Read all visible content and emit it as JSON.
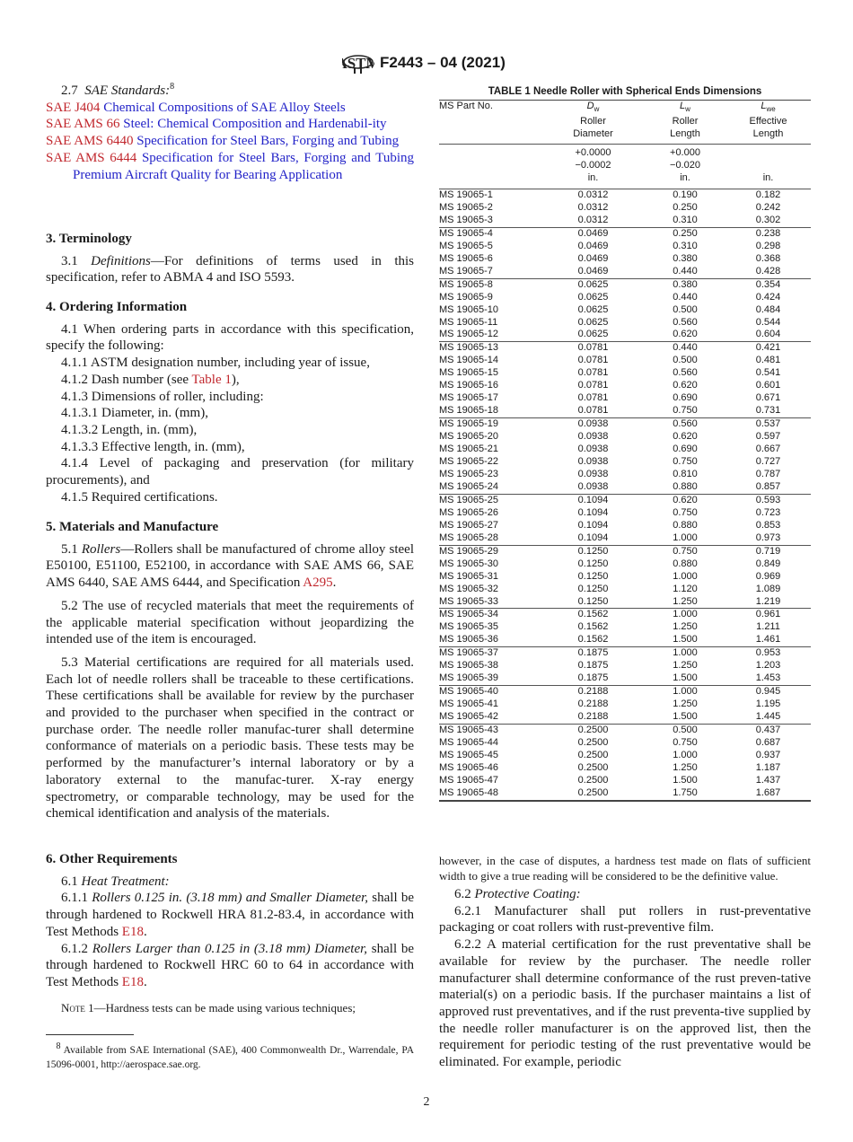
{
  "header": {
    "designation": "F2443 – 04 (2021)"
  },
  "left": {
    "s27": {
      "num": "2.7",
      "title": "SAE Standards:",
      "fn": "8"
    },
    "refs": [
      {
        "code": "SAE J404",
        "title": "Chemical Compositions of SAE Alloy Steels"
      },
      {
        "code": "SAE AMS 66",
        "title": "Steel: Chemical Composition and Hardenabil-ity"
      },
      {
        "code": "SAE AMS 6440",
        "title": "Specification for Steel Bars, Forging and Tubing"
      },
      {
        "code": "SAE AMS 6444",
        "title": "Specification for Steel Bars, Forging and Tubing Premium Aircraft Quality for Bearing Application"
      }
    ],
    "h3": "3. Terminology",
    "p31": {
      "num": "3.1",
      "head": "Definitions",
      "text": "—For definitions of terms used in this specification, refer to ABMA 4 and ISO 5593."
    },
    "h4": "4. Ordering Information",
    "p41": "4.1 When ordering parts in accordance with this specification, specify the following:",
    "p411": "4.1.1 ASTM designation number, including year of issue,",
    "p412": {
      "pre": "4.1.2 Dash number (see ",
      "link": "Table 1",
      "post": "),"
    },
    "p413": "4.1.3 Dimensions of roller, including:",
    "p4131": "4.1.3.1 Diameter, in. (mm),",
    "p4132": "4.1.3.2 Length, in. (mm),",
    "p4133": "4.1.3.3 Effective length, in. (mm),",
    "p414": "4.1.4 Level of packaging and preservation (for military procurements), and",
    "p415": "4.1.5 Required certifications.",
    "h5": "5. Materials and Manufacture",
    "p51": {
      "num": "5.1",
      "head": "Rollers",
      "text": "—Rollers shall be manufactured of chrome alloy steel E50100, E51100, E52100, in accordance with SAE AMS 66, SAE AMS 6440, SAE AMS 6444, and Specification ",
      "link": "A295",
      "post": "."
    },
    "p52": "5.2 The use of recycled materials that meet the requirements of the applicable material specification without jeopardizing the intended use of the item is encouraged.",
    "p53": "5.3 Material certifications are required for all materials used. Each lot of needle rollers shall be traceable to these certifications. These certifications shall be available for review by the purchaser and provided to the purchaser when specified in the contract or purchase order. The needle roller manufac-turer shall determine conformance of materials on a periodic basis. These tests may be performed by the manufacturer’s internal laboratory or by a laboratory external to the manufac-turer. X-ray energy spectrometry, or comparable technology, may be used for the chemical identification and analysis of the materials.",
    "h6": "6. Other Requirements",
    "p61": {
      "num": "6.1",
      "head": "Heat Treatment:"
    },
    "p611": {
      "num": "6.1.1",
      "head": "Rollers 0.125 in. (3.18 mm) and Smaller Diameter,",
      "text": " shall be through hardened to Rockwell HRA 81.2-83.4, in accordance with Test Methods ",
      "link": "E18",
      "post": "."
    },
    "p612": {
      "num": "6.1.2",
      "head": "Rollers Larger than 0.125 in (3.18 mm) Diameter,",
      "text": " shall be through hardened to Rockwell HRC 60 to 64 in accordance with Test Methods ",
      "link": "E18",
      "post": "."
    },
    "note1": {
      "label": "Note",
      "text": " 1—Hardness tests can be made using various techniques;"
    },
    "footnote": {
      "mark": "8",
      "text": " Available from SAE International (SAE), 400 Commonwealth Dr., Warrendale, PA 15096-0001, http://aerospace.sae.org."
    }
  },
  "right": {
    "note_cont": "however, in the case of disputes, a hardness test made on flats of sufficient width to give a true reading will be considered to be the definitive value.",
    "p62": {
      "num": "6.2",
      "head": "Protective Coating:"
    },
    "p621": "6.2.1 Manufacturer shall put rollers in rust-preventative packaging or coat rollers with rust-preventive film.",
    "p622": "6.2.2 A material certification for the rust preventative shall be available for review by the purchaser. The needle roller manufacturer shall determine conformance of the rust preven-tative material(s) on a periodic basis. If the purchaser maintains a list of approved rust preventatives, and if the rust preventa-tive supplied by the needle roller manufacturer is on the approved list, then the requirement for periodic testing of the rust preventative would be eliminated. For example, periodic"
  },
  "table": {
    "caption": "TABLE 1 Needle Roller with Spherical Ends Dimensions",
    "headers": [
      {
        "sym": "",
        "sub": "",
        "l1": "MS Part No.",
        "l2": "",
        "l3": ""
      },
      {
        "sym": "D",
        "sub": "w",
        "l1": "Roller",
        "l2": "Diameter",
        "tol1": "+0.0000",
        "tol2": "−0.0002",
        "unit": "in."
      },
      {
        "sym": "L",
        "sub": "w",
        "l1": "Roller",
        "l2": "Length",
        "tol1": "+0.000",
        "tol2": "−0.020",
        "unit": "in."
      },
      {
        "sym": "L",
        "sub": "we",
        "l1": "Effective",
        "l2": "Length",
        "tol1": "",
        "tol2": "",
        "unit": "in."
      }
    ],
    "groups": [
      [
        [
          "MS 19065-1",
          "0.0312",
          "0.190",
          "0.182"
        ],
        [
          "MS 19065-2",
          "0.0312",
          "0.250",
          "0.242"
        ],
        [
          "MS 19065-3",
          "0.0312",
          "0.310",
          "0.302"
        ]
      ],
      [
        [
          "MS 19065-4",
          "0.0469",
          "0.250",
          "0.238"
        ],
        [
          "MS 19065-5",
          "0.0469",
          "0.310",
          "0.298"
        ],
        [
          "MS 19065-6",
          "0.0469",
          "0.380",
          "0.368"
        ],
        [
          "MS 19065-7",
          "0.0469",
          "0.440",
          "0.428"
        ]
      ],
      [
        [
          "MS 19065-8",
          "0.0625",
          "0.380",
          "0.354"
        ],
        [
          "MS 19065-9",
          "0.0625",
          "0.440",
          "0.424"
        ],
        [
          "MS 19065-10",
          "0.0625",
          "0.500",
          "0.484"
        ],
        [
          "MS 19065-11",
          "0.0625",
          "0.560",
          "0.544"
        ],
        [
          "MS 19065-12",
          "0.0625",
          "0.620",
          "0.604"
        ]
      ],
      [
        [
          "MS 19065-13",
          "0.0781",
          "0.440",
          "0.421"
        ],
        [
          "MS 19065-14",
          "0.0781",
          "0.500",
          "0.481"
        ],
        [
          "MS 19065-15",
          "0.0781",
          "0.560",
          "0.541"
        ],
        [
          "MS 19065-16",
          "0.0781",
          "0.620",
          "0.601"
        ],
        [
          "MS 19065-17",
          "0.0781",
          "0.690",
          "0.671"
        ],
        [
          "MS 19065-18",
          "0.0781",
          "0.750",
          "0.731"
        ]
      ],
      [
        [
          "MS 19065-19",
          "0.0938",
          "0.560",
          "0.537"
        ],
        [
          "MS 19065-20",
          "0.0938",
          "0.620",
          "0.597"
        ],
        [
          "MS 19065-21",
          "0.0938",
          "0.690",
          "0.667"
        ],
        [
          "MS 19065-22",
          "0.0938",
          "0.750",
          "0.727"
        ],
        [
          "MS 19065-23",
          "0.0938",
          "0.810",
          "0.787"
        ],
        [
          "MS 19065-24",
          "0.0938",
          "0.880",
          "0.857"
        ]
      ],
      [
        [
          "MS 19065-25",
          "0.1094",
          "0.620",
          "0.593"
        ],
        [
          "MS 19065-26",
          "0.1094",
          "0.750",
          "0.723"
        ],
        [
          "MS 19065-27",
          "0.1094",
          "0.880",
          "0.853"
        ],
        [
          "MS 19065-28",
          "0.1094",
          "1.000",
          "0.973"
        ]
      ],
      [
        [
          "MS 19065-29",
          "0.1250",
          "0.750",
          "0.719"
        ],
        [
          "MS 19065-30",
          "0.1250",
          "0.880",
          "0.849"
        ],
        [
          "MS 19065-31",
          "0.1250",
          "1.000",
          "0.969"
        ],
        [
          "MS 19065-32",
          "0.1250",
          "1.120",
          "1.089"
        ],
        [
          "MS 19065-33",
          "0.1250",
          "1.250",
          "1.219"
        ]
      ],
      [
        [
          "MS 19065-34",
          "0.1562",
          "1.000",
          "0.961"
        ],
        [
          "MS 19065-35",
          "0.1562",
          "1.250",
          "1.211"
        ],
        [
          "MS 19065-36",
          "0.1562",
          "1.500",
          "1.461"
        ]
      ],
      [
        [
          "MS 19065-37",
          "0.1875",
          "1.000",
          "0.953"
        ],
        [
          "MS 19065-38",
          "0.1875",
          "1.250",
          "1.203"
        ],
        [
          "MS 19065-39",
          "0.1875",
          "1.500",
          "1.453"
        ]
      ],
      [
        [
          "MS 19065-40",
          "0.2188",
          "1.000",
          "0.945"
        ],
        [
          "MS 19065-41",
          "0.2188",
          "1.250",
          "1.195"
        ],
        [
          "MS 19065-42",
          "0.2188",
          "1.500",
          "1.445"
        ]
      ],
      [
        [
          "MS 19065-43",
          "0.2500",
          "0.500",
          "0.437"
        ],
        [
          "MS 19065-44",
          "0.2500",
          "0.750",
          "0.687"
        ],
        [
          "MS 19065-45",
          "0.2500",
          "1.000",
          "0.937"
        ],
        [
          "MS 19065-46",
          "0.2500",
          "1.250",
          "1.187"
        ],
        [
          "MS 19065-47",
          "0.2500",
          "1.500",
          "1.437"
        ],
        [
          "MS 19065-48",
          "0.2500",
          "1.750",
          "1.687"
        ]
      ]
    ]
  },
  "page_number": "2",
  "colors": {
    "link_code": "#c1272d",
    "link_title": "#2323c8"
  }
}
